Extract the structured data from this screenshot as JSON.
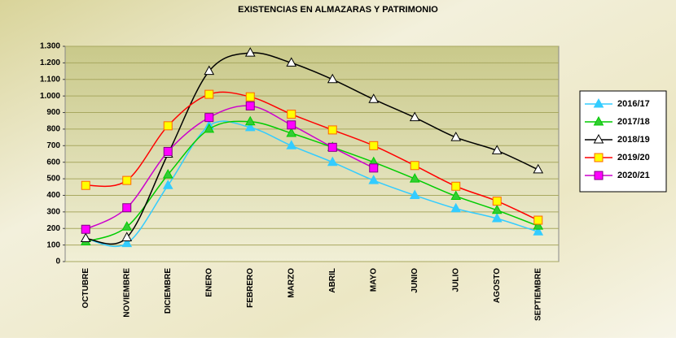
{
  "chart_data": {
    "type": "line",
    "title": "EXISTENCIAS EN ALMAZARAS Y PATRIMONIO",
    "categories": [
      "OCTUBRE",
      "NOVIEMBRE",
      "DICIEMBRE",
      "ENERO",
      "FEBRERO",
      "MARZO",
      "ABRIL",
      "MAYO",
      "JUNIO",
      "JULIO",
      "AGOSTO",
      "SEPTIEMBRE"
    ],
    "ylim": [
      0,
      1300
    ],
    "yticks": [
      0,
      100,
      200,
      300,
      400,
      500,
      600,
      700,
      800,
      900,
      {
        "value": 1000,
        "label": "1.000"
      },
      {
        "value": 1100,
        "label": "1.100"
      },
      {
        "value": 1200,
        "label": "1.200"
      },
      {
        "value": 1300,
        "label": "1.300"
      }
    ],
    "grid": true,
    "smooth": true,
    "legend": "right",
    "series": [
      {
        "name": "2016/17",
        "color": "#33ccff",
        "marker": "triangle",
        "marker_fill": "#33ccff",
        "values": [
          140,
          110,
          460,
          820,
          810,
          700,
          600,
          490,
          400,
          320,
          260,
          180
        ]
      },
      {
        "name": "2017/18",
        "color": "#00cc00",
        "marker": "triangle",
        "marker_fill": "#33cc33",
        "values": [
          120,
          210,
          525,
          800,
          845,
          775,
          690,
          600,
          500,
          395,
          310,
          215
        ]
      },
      {
        "name": "2018/19",
        "color": "#000000",
        "marker": "triangle",
        "marker_fill": "#ffffff",
        "values": [
          140,
          145,
          650,
          1150,
          1260,
          1200,
          1100,
          980,
          870,
          750,
          670,
          555
        ]
      },
      {
        "name": "2019/20",
        "color": "#ff0000",
        "marker": "square",
        "marker_fill": "#ffff00",
        "values": [
          460,
          490,
          820,
          1010,
          995,
          890,
          795,
          700,
          580,
          455,
          365,
          250
        ]
      },
      {
        "name": "2020/21",
        "color": "#cc00cc",
        "marker": "square",
        "marker_fill": "#ff00ff",
        "values": [
          195,
          325,
          665,
          870,
          940,
          825,
          690,
          565,
          null,
          null,
          null,
          null
        ]
      }
    ]
  }
}
